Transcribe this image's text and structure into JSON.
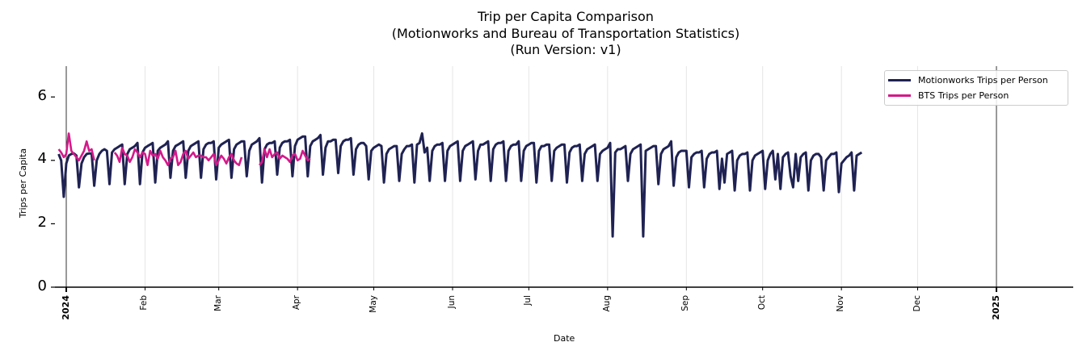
{
  "chart_data": {
    "type": "line",
    "title": "Trip per Capita Comparison",
    "subtitle_lines": [
      "(Motionworks and Bureau of Transportation Statistics)",
      "(Run Version: v1)"
    ],
    "xlabel": "Date",
    "ylabel": "Trips per Capita",
    "ylim": [
      0,
      7
    ],
    "yticks": [
      "0",
      "2",
      "4",
      "6"
    ],
    "xlim": [
      "2023-12-29",
      "2025-01-31"
    ],
    "xticks": [
      {
        "label": "2024",
        "date": "2024-01-01",
        "bold": true
      },
      {
        "label": "Feb",
        "date": "2024-02-01",
        "bold": false
      },
      {
        "label": "Mar",
        "date": "2024-03-01",
        "bold": false
      },
      {
        "label": "Apr",
        "date": "2024-04-01",
        "bold": false
      },
      {
        "label": "May",
        "date": "2024-05-01",
        "bold": false
      },
      {
        "label": "Jun",
        "date": "2024-06-01",
        "bold": false
      },
      {
        "label": "Jul",
        "date": "2024-07-01",
        "bold": false
      },
      {
        "label": "Aug",
        "date": "2024-08-01",
        "bold": false
      },
      {
        "label": "Sep",
        "date": "2024-09-01",
        "bold": false
      },
      {
        "label": "Oct",
        "date": "2024-10-01",
        "bold": false
      },
      {
        "label": "Nov",
        "date": "2024-11-01",
        "bold": false
      },
      {
        "label": "Dec",
        "date": "2024-12-01",
        "bold": false
      },
      {
        "label": "2025",
        "date": "2025-01-01",
        "bold": true
      }
    ],
    "grid": "vertical at month ticks",
    "legend_position": "upper right",
    "series": [
      {
        "name": "Motionworks Trips per Person",
        "color": "#1f2252",
        "start_date": "2023-12-29",
        "frequency": "daily",
        "weekly_pattern_note": "weekday ~4.2-4.6, Sunday dip ~3.1-3.6",
        "values": [
          4.2,
          4.0,
          2.85,
          3.9,
          4.15,
          4.2,
          4.22,
          4.15,
          3.15,
          3.9,
          4.1,
          4.2,
          4.22,
          4.22,
          3.2,
          4.0,
          4.2,
          4.3,
          4.35,
          4.3,
          3.25,
          4.25,
          4.35,
          4.4,
          4.45,
          4.5,
          3.25,
          4.2,
          4.35,
          4.4,
          4.45,
          4.55,
          3.25,
          4.25,
          4.4,
          4.45,
          4.5,
          4.55,
          3.3,
          4.3,
          4.4,
          4.45,
          4.5,
          4.6,
          3.45,
          4.3,
          4.45,
          4.5,
          4.55,
          4.6,
          3.45,
          4.3,
          4.45,
          4.5,
          4.55,
          4.6,
          3.45,
          4.35,
          4.5,
          4.55,
          4.55,
          4.6,
          3.4,
          4.4,
          4.5,
          4.55,
          4.6,
          4.65,
          3.45,
          4.35,
          4.5,
          4.55,
          4.6,
          4.6,
          3.5,
          4.3,
          4.5,
          4.55,
          4.6,
          4.7,
          3.3,
          4.35,
          4.5,
          4.55,
          4.55,
          4.6,
          3.55,
          4.4,
          4.55,
          4.6,
          4.6,
          4.65,
          3.5,
          4.45,
          4.65,
          4.7,
          4.75,
          4.75,
          3.5,
          4.45,
          4.6,
          4.65,
          4.7,
          4.8,
          3.55,
          4.4,
          4.6,
          4.6,
          4.65,
          4.65,
          3.6,
          4.45,
          4.6,
          4.65,
          4.65,
          4.7,
          3.55,
          4.35,
          4.5,
          4.55,
          4.55,
          4.45,
          3.4,
          4.3,
          4.4,
          4.45,
          4.5,
          4.45,
          3.3,
          4.2,
          4.35,
          4.4,
          4.45,
          4.45,
          3.35,
          4.2,
          4.35,
          4.45,
          4.45,
          4.5,
          3.3,
          4.5,
          4.55,
          4.85,
          4.25,
          4.4,
          3.35,
          4.3,
          4.45,
          4.5,
          4.5,
          4.55,
          3.35,
          4.3,
          4.45,
          4.5,
          4.55,
          4.6,
          3.35,
          4.3,
          4.45,
          4.5,
          4.55,
          4.6,
          3.4,
          4.3,
          4.5,
          4.5,
          4.55,
          4.6,
          3.35,
          4.35,
          4.5,
          4.55,
          4.55,
          4.6,
          3.35,
          4.3,
          4.45,
          4.5,
          4.5,
          4.6,
          3.35,
          4.3,
          4.45,
          4.5,
          4.55,
          4.55,
          3.3,
          4.3,
          4.45,
          4.45,
          4.5,
          4.5,
          3.35,
          4.3,
          4.4,
          4.45,
          4.5,
          4.5,
          3.3,
          4.25,
          4.4,
          4.45,
          4.45,
          4.5,
          3.35,
          4.2,
          4.35,
          4.4,
          4.45,
          4.5,
          3.35,
          4.2,
          4.3,
          4.35,
          4.4,
          4.55,
          1.6,
          4.25,
          4.35,
          4.35,
          4.4,
          4.45,
          3.35,
          4.2,
          4.35,
          4.4,
          4.45,
          4.5,
          1.6,
          4.3,
          4.35,
          4.4,
          4.45,
          4.45,
          3.25,
          4.2,
          4.35,
          4.4,
          4.45,
          4.6,
          3.2,
          4.1,
          4.25,
          4.3,
          4.3,
          4.3,
          3.15,
          4.1,
          4.2,
          4.25,
          4.25,
          4.3,
          3.15,
          4.05,
          4.2,
          4.25,
          4.25,
          4.3,
          3.1,
          4.05,
          3.3,
          4.2,
          4.25,
          4.3,
          3.05,
          4.0,
          4.15,
          4.2,
          4.2,
          4.25,
          3.05,
          4.0,
          4.15,
          4.2,
          4.25,
          4.3,
          3.1,
          4.0,
          4.2,
          4.3,
          3.4,
          4.2,
          3.1,
          4.1,
          4.2,
          4.25,
          3.5,
          3.15,
          4.2,
          3.35,
          4.1,
          4.2,
          4.25,
          3.05,
          4.0,
          4.15,
          4.2,
          4.2,
          4.1,
          3.05,
          4.0,
          4.1,
          4.2,
          4.2,
          4.25,
          3.0,
          3.9,
          4.0,
          4.1,
          4.15,
          4.25,
          3.05,
          4.15,
          4.2,
          4.25
        ]
      },
      {
        "name": "BTS Trips per Person",
        "color": "#d4198a",
        "segments": [
          {
            "start_date": "2023-12-29",
            "values": [
              4.35,
              4.25,
              4.1,
              4.2,
              4.85,
              4.3,
              4.2,
              4.1,
              4.0,
              4.15,
              4.3,
              4.6,
              4.3,
              4.35,
              4.0
            ]
          },
          {
            "start_date": "2024-01-20",
            "values": [
              4.25,
              4.15,
              3.95,
              4.4,
              4.2,
              4.15,
              3.95,
              4.1,
              4.35,
              4.25,
              4.1,
              4.25,
              4.2,
              3.85,
              4.3,
              4.15,
              4.2,
              4.05,
              4.3,
              4.1,
              4.0,
              3.85,
              4.05,
              4.1,
              4.3,
              3.85,
              3.95,
              4.2,
              4.3,
              4.05,
              4.15,
              4.25,
              4.1,
              4.15,
              4.15,
              4.1,
              4.1,
              4.0,
              4.1,
              4.2,
              3.85,
              4.0,
              4.15,
              4.05,
              3.9,
              4.1,
              4.2,
              4.0,
              3.9,
              3.85,
              4.1
            ]
          },
          {
            "start_date": "2024-03-17",
            "values": [
              3.85,
              3.95,
              4.35,
              4.1,
              4.35,
              4.1,
              4.2,
              4.25,
              4.05,
              4.15,
              4.1,
              4.05,
              3.95,
              4.15,
              4.2,
              4.0,
              4.05,
              4.3,
              4.15,
              4.0,
              4.05
            ]
          }
        ]
      }
    ]
  },
  "legend": {
    "items": [
      {
        "label": "Motionworks Trips per Person",
        "color": "#1f2252"
      },
      {
        "label": "BTS Trips per Person",
        "color": "#d4198a"
      }
    ]
  }
}
